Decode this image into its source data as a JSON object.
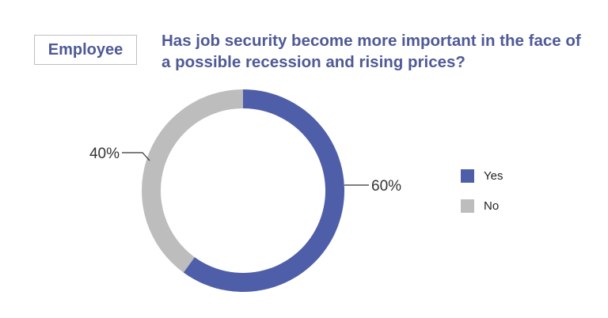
{
  "tag": "Employee",
  "chart_data": {
    "type": "pie",
    "variant": "donut",
    "title": "Has job security become more important in the face of a possible recession and rising prices?",
    "categories": [
      "Yes",
      "No"
    ],
    "values": [
      60,
      40
    ],
    "labels": [
      "60%",
      "40%"
    ],
    "colors": [
      "#4f5ea8",
      "#bdbdbd"
    ],
    "legend": "right"
  }
}
